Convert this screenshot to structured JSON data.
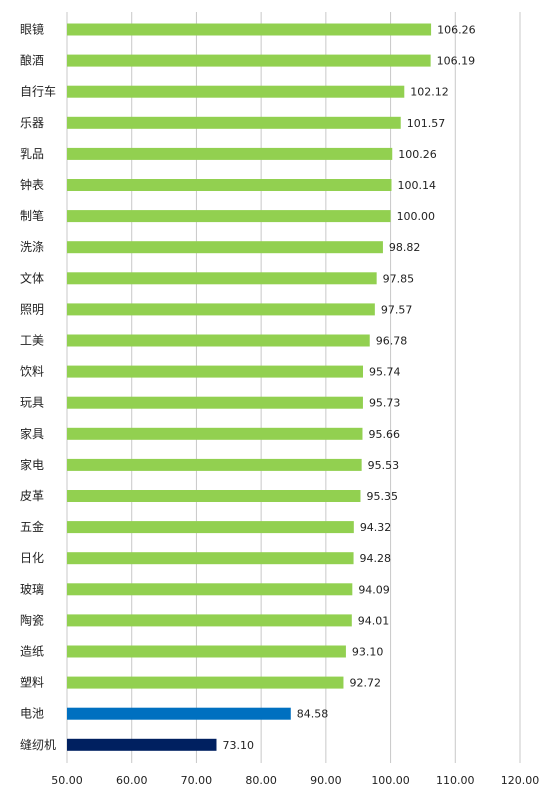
{
  "chart_data": {
    "type": "bar",
    "orientation": "horizontal",
    "categories": [
      "眼镜",
      "酿酒",
      "自行车",
      "乐器",
      "乳品",
      "钟表",
      "制笔",
      "洗涤",
      "文体",
      "照明",
      "工美",
      "饮料",
      "玩具",
      "家具",
      "家电",
      "皮革",
      "五金",
      "日化",
      "玻璃",
      "陶瓷",
      "造纸",
      "塑料",
      "电池",
      "缝纫机"
    ],
    "values": [
      106.26,
      106.19,
      102.12,
      101.57,
      100.26,
      100.14,
      100.0,
      98.82,
      97.85,
      97.57,
      96.78,
      95.74,
      95.73,
      95.66,
      95.53,
      95.35,
      94.32,
      94.28,
      94.09,
      94.01,
      93.1,
      92.72,
      84.58,
      73.1
    ],
    "value_labels": [
      "106.26",
      "106.19",
      "102.12",
      "101.57",
      "100.26",
      "100.14",
      "100.00",
      "98.82",
      "97.85",
      "97.57",
      "96.78",
      "95.74",
      "95.73",
      "95.66",
      "95.53",
      "95.35",
      "94.32",
      "94.28",
      "94.09",
      "94.01",
      "93.10",
      "92.72",
      "84.58",
      "73.10"
    ],
    "bar_colors": [
      "#92d050",
      "#92d050",
      "#92d050",
      "#92d050",
      "#92d050",
      "#92d050",
      "#92d050",
      "#92d050",
      "#92d050",
      "#92d050",
      "#92d050",
      "#92d050",
      "#92d050",
      "#92d050",
      "#92d050",
      "#92d050",
      "#92d050",
      "#92d050",
      "#92d050",
      "#92d050",
      "#92d050",
      "#92d050",
      "#0070c0",
      "#002060"
    ],
    "xlim": [
      50,
      120
    ],
    "x_ticks": [
      50,
      60,
      70,
      80,
      90,
      100,
      110,
      120
    ],
    "x_tick_labels": [
      "50.00",
      "60.00",
      "70.00",
      "80.00",
      "90.00",
      "100.00",
      "110.00",
      "120.00"
    ],
    "grid": "vertical",
    "grid_color": "#c8c8c8",
    "legend": "none"
  }
}
